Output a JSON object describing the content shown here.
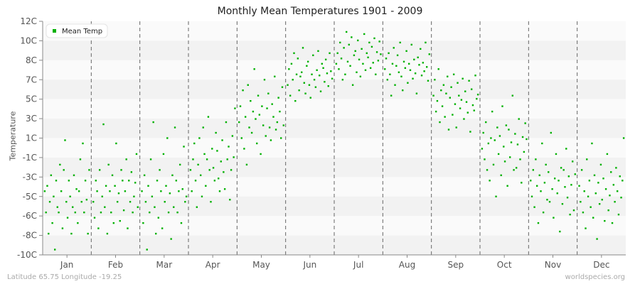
{
  "chart_data": {
    "type": "scatter",
    "title": "Monthly Mean Temperatures 1901 - 2009",
    "ylabel": "Temperature",
    "xlabel": "",
    "legend": {
      "entries": [
        "Mean Temp"
      ],
      "placement": "top-left"
    },
    "ylim": [
      -10,
      12
    ],
    "yticks": [
      "12C",
      "10C",
      "8C",
      "7C",
      "5C",
      "3C",
      "1C",
      "-1C",
      "-3C",
      "-5C",
      "-6C",
      "-8C",
      "-10C"
    ],
    "categories": [
      "Jan",
      "Feb",
      "Mar",
      "Apr",
      "May",
      "Jun",
      "Jul",
      "Aug",
      "Sep",
      "Oct",
      "Nov",
      "Dec"
    ],
    "grid": true,
    "color": "#00b000",
    "series": [
      {
        "name": "Mean Temp",
        "values_by_month": [
          [
            -4,
            -6,
            -3.5,
            -8,
            -5,
            -2.5,
            -7,
            -4.5,
            -9.5,
            -3,
            -5.5,
            -6,
            -1.5,
            -4,
            -7.5,
            -2,
            0.8,
            -5,
            -6.5,
            -3,
            -4.5,
            -8,
            -5.5,
            -2.5,
            -6,
            -3.8,
            -7,
            -4,
            -1,
            -5,
            0.5,
            -6,
            -3,
            -4.8,
            -8,
            -2
          ],
          [
            -5,
            -6.5,
            -3,
            -4,
            -7.5,
            -2,
            -6,
            -4.5,
            2.3,
            -5.5,
            -3.5,
            -8,
            -1.5,
            -4,
            -6,
            -2.5,
            -7,
            -3.5,
            0.5,
            -5,
            -4.2,
            -6.8,
            -2,
            -3,
            -5.8,
            -4,
            -1,
            -7.5,
            -3,
            -5,
            -2.2,
            -6,
            -4.5,
            -3.2,
            -0.5,
            -5.5
          ],
          [
            -4,
            -7,
            -2.5,
            -5,
            -9.5,
            -3.5,
            -6,
            -1,
            -4.5,
            2.5,
            -5.5,
            -8,
            -3,
            -6.5,
            -2,
            -4,
            -7.5,
            -0.5,
            -5,
            -3.5,
            1,
            -6,
            -4.2,
            -8.5,
            -2.5,
            -5.5,
            2,
            -3,
            -6,
            -4,
            -1.5,
            -7,
            -3.8,
            0.2,
            -5,
            -4.5
          ],
          [
            -2,
            -4,
            -1,
            0.5,
            -3,
            -5.5,
            -1.5,
            1,
            -2.5,
            -4.5,
            2,
            -0.5,
            -3.5,
            -1,
            3,
            -2,
            -5,
            0,
            -1.8,
            -3,
            1.5,
            -0.2,
            -2.8,
            -4,
            -1.2,
            0.8,
            -2.2,
            -3.8,
            2.5,
            -1,
            0.2,
            -4.8,
            -2,
            1.2,
            -0.8,
            3.8
          ],
          [
            2.5,
            4,
            1,
            5.5,
            0,
            3,
            -1.5,
            6,
            2,
            4.5,
            1.5,
            3.5,
            7.5,
            2.8,
            0.5,
            5,
            3.2,
            -0.5,
            4,
            2.2,
            6.5,
            1.2,
            3.8,
            5.2,
            2,
            0.8,
            4.2,
            3,
            6.8,
            1.8,
            2.5,
            4.8,
            3.5,
            1,
            5.8,
            2.2
          ],
          [
            6,
            7.5,
            5,
            8,
            6.5,
            9,
            4.5,
            7,
            8.5,
            5.5,
            6.8,
            7.2,
            9.5,
            6.2,
            5.2,
            7.8,
            8.2,
            6,
            4.8,
            7,
            8.8,
            6.5,
            5.8,
            7.4,
            9.2,
            6.9,
            5.4,
            8,
            7.6,
            6.3,
            8.4,
            7.1,
            5.9,
            9,
            7.3,
            6.6
          ],
          [
            8,
            9,
            7.5,
            10,
            8.5,
            6.5,
            9.5,
            7,
            11,
            8.2,
            9.8,
            7.8,
            10.5,
            6,
            8.8,
            9.2,
            7.2,
            10.2,
            8.4,
            6.8,
            9.4,
            8,
            10.8,
            7.4,
            9,
            8.6,
            10,
            7.6,
            9.6,
            8.1,
            10.4,
            7,
            9.1,
            8.3,
            10.1,
            8.9
          ],
          [
            7.5,
            8.5,
            6.5,
            9,
            7,
            5,
            8,
            9.5,
            6,
            7.8,
            8.8,
            7.2,
            10,
            6.8,
            5.5,
            8.2,
            7.6,
            9.2,
            6.2,
            8,
            7.4,
            9.8,
            6.6,
            8.4,
            7.1,
            5.2,
            8.6,
            7.9,
            9.4,
            6.9,
            8.1,
            7.3,
            10,
            7.7,
            6.4,
            8.9
          ],
          [
            5,
            6.5,
            3.5,
            4.5,
            7.5,
            2.5,
            5.5,
            4,
            6,
            3,
            5.2,
            6.8,
            1.8,
            4.8,
            5.8,
            3.2,
            7,
            4.2,
            2,
            6.2,
            5,
            3.8,
            4.6,
            6.6,
            2.8,
            5.4,
            4.4,
            3.4,
            6.4,
            1.6,
            5.6,
            4.1,
            3.6,
            6.9,
            4.7,
            5.1
          ],
          [
            0,
            1.5,
            -1,
            2.5,
            -2,
            0.5,
            -3,
            1,
            3.5,
            -1.5,
            0.8,
            -4.5,
            2,
            -0.5,
            1.2,
            -2.5,
            4,
            0.2,
            -1.2,
            2.2,
            -3.5,
            1.8,
            -0.8,
            0.6,
            5,
            -2,
            1.4,
            -1.8,
            0.4,
            2.8,
            -1,
            -3.2,
            1.1,
            -0.3,
            2.4,
            0.9
          ],
          [
            -3,
            -4.5,
            -2,
            -5.5,
            -1,
            -3.5,
            -7,
            -2.5,
            -4,
            0.5,
            -6,
            -3.2,
            -1.5,
            -4.8,
            -2.2,
            -5,
            1.5,
            -3.8,
            -6.5,
            -2.8,
            -0.5,
            -4.2,
            -3,
            -7.8,
            -1.8,
            -5.2,
            -2,
            -3.6,
            0,
            -4.6,
            -2.6,
            -6.2,
            -3.4,
            -1.2,
            -5.8,
            -2.4
          ],
          [
            -3.5,
            -5,
            -2,
            -6,
            -4,
            -7.5,
            -1,
            -4.5,
            -3,
            -5.5,
            0.5,
            -6.5,
            -2.5,
            -4.2,
            -8.5,
            -3.2,
            -5.2,
            -1.5,
            -4.8,
            -2.8,
            -6.8,
            -3.8,
            -0.5,
            -5.8,
            -4.4,
            -2.2,
            -7,
            -3.4,
            -5,
            -1.8,
            -4,
            -6.2,
            -2.6,
            -4.6,
            -3,
            1
          ]
        ]
      }
    ]
  },
  "footer": {
    "left": "Latitude 65.75 Longitude -19.25",
    "right": "worldspecies.org"
  }
}
